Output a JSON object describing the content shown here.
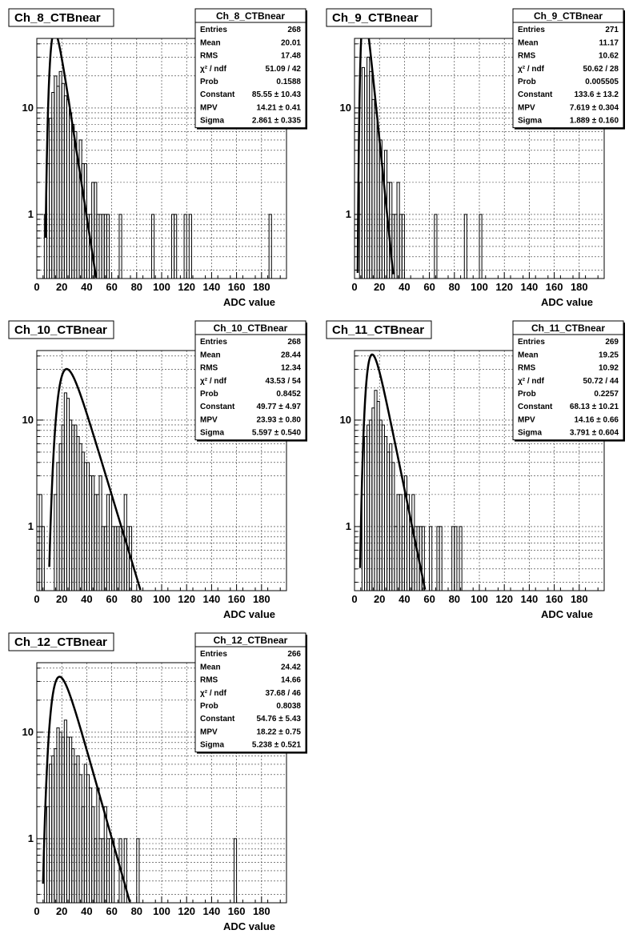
{
  "page": {
    "footer": ""
  },
  "axis_labels": {
    "x_ticks": [
      "0",
      "20",
      "40",
      "60",
      "80",
      "100",
      "120",
      "140",
      "160",
      "180"
    ],
    "y_ticks": [
      "1",
      "10"
    ]
  },
  "chart_data": [
    {
      "type": "bar",
      "title": "Ch_8_CTBnear",
      "xlabel": "ADC value",
      "ylabel": "",
      "xlim": [
        0,
        200
      ],
      "ylim_log": [
        0.25,
        45
      ],
      "log_y": true,
      "grid": true,
      "legend_position": "top-right",
      "stats": [
        {
          "label": "Entries",
          "value": "268"
        },
        {
          "label": "Mean",
          "value": "20.01"
        },
        {
          "label": "RMS",
          "value": "17.48"
        },
        {
          "label": "χ² / ndf",
          "value": "51.09 / 42"
        },
        {
          "label": "Prob",
          "value": "0.1588"
        },
        {
          "label": "Constant",
          "value": "85.55 ± 10.43"
        },
        {
          "label": "MPV",
          "value": "14.21 ± 0.41"
        },
        {
          "label": "Sigma",
          "value": "2.861 ± 0.335"
        }
      ],
      "fit": {
        "function": "landau",
        "constant": 85.55,
        "mpv": 14.21,
        "sigma": 2.861
      },
      "bins": [
        [
          6,
          1
        ],
        [
          8,
          3
        ],
        [
          10,
          8
        ],
        [
          12,
          14
        ],
        [
          14,
          20
        ],
        [
          16,
          16
        ],
        [
          18,
          22
        ],
        [
          20,
          17
        ],
        [
          22,
          13
        ],
        [
          24,
          12
        ],
        [
          26,
          9
        ],
        [
          28,
          7
        ],
        [
          30,
          6
        ],
        [
          32,
          3
        ],
        [
          34,
          5
        ],
        [
          36,
          3
        ],
        [
          38,
          3
        ],
        [
          40,
          1
        ],
        [
          42,
          1
        ],
        [
          44,
          2
        ],
        [
          46,
          2
        ],
        [
          48,
          1
        ],
        [
          50,
          1
        ],
        [
          52,
          1
        ],
        [
          54,
          1
        ],
        [
          56,
          1
        ],
        [
          66,
          1
        ],
        [
          92,
          1
        ],
        [
          108,
          1
        ],
        [
          110,
          1
        ],
        [
          118,
          1
        ],
        [
          122,
          1
        ],
        [
          186,
          1
        ]
      ]
    },
    {
      "type": "bar",
      "title": "Ch_9_CTBnear",
      "xlabel": "ADC value",
      "ylabel": "",
      "xlim": [
        0,
        200
      ],
      "ylim_log": [
        0.25,
        45
      ],
      "log_y": true,
      "grid": true,
      "legend_position": "top-right",
      "stats": [
        {
          "label": "Entries",
          "value": "271"
        },
        {
          "label": "Mean",
          "value": "11.17"
        },
        {
          "label": "RMS",
          "value": "10.62"
        },
        {
          "label": "χ² / ndf",
          "value": "50.62 / 28"
        },
        {
          "label": "Prob",
          "value": "0.005505"
        },
        {
          "label": "Constant",
          "value": "133.6 ± 13.2"
        },
        {
          "label": "MPV",
          "value": "7.619 ± 0.304"
        },
        {
          "label": "Sigma",
          "value": "1.889 ± 0.160"
        }
      ],
      "fit": {
        "function": "landau",
        "constant": 133.6,
        "mpv": 7.619,
        "sigma": 1.889
      },
      "bins": [
        [
          4,
          2
        ],
        [
          6,
          24
        ],
        [
          8,
          20
        ],
        [
          10,
          30
        ],
        [
          12,
          22
        ],
        [
          14,
          12
        ],
        [
          16,
          9
        ],
        [
          18,
          6
        ],
        [
          20,
          5
        ],
        [
          22,
          3
        ],
        [
          24,
          4
        ],
        [
          26,
          2
        ],
        [
          28,
          2
        ],
        [
          30,
          1
        ],
        [
          32,
          1
        ],
        [
          34,
          2
        ],
        [
          36,
          1
        ],
        [
          38,
          1
        ],
        [
          64,
          1
        ],
        [
          88,
          1
        ],
        [
          100,
          1
        ]
      ]
    },
    {
      "type": "bar",
      "title": "Ch_10_CTBnear",
      "xlabel": "ADC value",
      "ylabel": "",
      "xlim": [
        0,
        200
      ],
      "ylim_log": [
        0.25,
        45
      ],
      "log_y": true,
      "grid": true,
      "legend_position": "top-right",
      "stats": [
        {
          "label": "Entries",
          "value": "268"
        },
        {
          "label": "Mean",
          "value": "28.44"
        },
        {
          "label": "RMS",
          "value": "12.34"
        },
        {
          "label": "χ² / ndf",
          "value": "43.53 / 54"
        },
        {
          "label": "Prob",
          "value": "0.8452"
        },
        {
          "label": "Constant",
          "value": "49.77 ± 4.97"
        },
        {
          "label": "MPV",
          "value": "23.93 ± 0.80"
        },
        {
          "label": "Sigma",
          "value": "5.597 ± 0.540"
        }
      ],
      "fit": {
        "function": "landau",
        "constant": 49.77,
        "mpv": 23.93,
        "sigma": 5.597
      },
      "bins": [
        [
          2,
          2
        ],
        [
          4,
          1
        ],
        [
          14,
          2
        ],
        [
          16,
          4
        ],
        [
          18,
          6
        ],
        [
          20,
          9
        ],
        [
          22,
          18
        ],
        [
          24,
          16
        ],
        [
          26,
          10
        ],
        [
          28,
          9
        ],
        [
          30,
          9
        ],
        [
          32,
          7
        ],
        [
          34,
          6
        ],
        [
          36,
          5
        ],
        [
          38,
          4
        ],
        [
          40,
          4
        ],
        [
          42,
          3
        ],
        [
          44,
          3
        ],
        [
          46,
          2
        ],
        [
          48,
          2
        ],
        [
          50,
          3
        ],
        [
          52,
          1
        ],
        [
          54,
          1
        ],
        [
          56,
          2
        ],
        [
          58,
          2
        ],
        [
          60,
          1
        ],
        [
          62,
          1
        ],
        [
          64,
          1
        ],
        [
          66,
          1
        ],
        [
          68,
          1
        ],
        [
          70,
          2
        ],
        [
          72,
          1
        ],
        [
          74,
          1
        ]
      ]
    },
    {
      "type": "bar",
      "title": "Ch_11_CTBnear",
      "xlabel": "ADC value",
      "ylabel": "",
      "xlim": [
        0,
        200
      ],
      "ylim_log": [
        0.25,
        45
      ],
      "log_y": true,
      "grid": true,
      "legend_position": "top-right",
      "stats": [
        {
          "label": "Entries",
          "value": "269"
        },
        {
          "label": "Mean",
          "value": "19.25"
        },
        {
          "label": "RMS",
          "value": "10.92"
        },
        {
          "label": "χ² / ndf",
          "value": "50.72 / 44"
        },
        {
          "label": "Prob",
          "value": "0.2257"
        },
        {
          "label": "Constant",
          "value": "68.13 ± 10.21"
        },
        {
          "label": "MPV",
          "value": "14.16 ± 0.66"
        },
        {
          "label": "Sigma",
          "value": "3.791 ± 0.604"
        }
      ],
      "fit": {
        "function": "landau",
        "constant": 68.13,
        "mpv": 14.16,
        "sigma": 3.791
      },
      "bins": [
        [
          6,
          2
        ],
        [
          8,
          7
        ],
        [
          10,
          9
        ],
        [
          12,
          10
        ],
        [
          14,
          13
        ],
        [
          16,
          19
        ],
        [
          18,
          15
        ],
        [
          20,
          10
        ],
        [
          22,
          9
        ],
        [
          24,
          7
        ],
        [
          26,
          5
        ],
        [
          28,
          6
        ],
        [
          30,
          4
        ],
        [
          32,
          1
        ],
        [
          34,
          2
        ],
        [
          36,
          2
        ],
        [
          38,
          1
        ],
        [
          40,
          3
        ],
        [
          42,
          2
        ],
        [
          44,
          1
        ],
        [
          46,
          2
        ],
        [
          48,
          1
        ],
        [
          50,
          1
        ],
        [
          52,
          1
        ],
        [
          54,
          1
        ],
        [
          60,
          1
        ],
        [
          66,
          1
        ],
        [
          68,
          1
        ],
        [
          78,
          1
        ],
        [
          80,
          1
        ],
        [
          84,
          1
        ]
      ]
    },
    {
      "type": "bar",
      "title": "Ch_12_CTBnear",
      "xlabel": "ADC value",
      "ylabel": "",
      "xlim": [
        0,
        200
      ],
      "ylim_log": [
        0.25,
        45
      ],
      "log_y": true,
      "grid": true,
      "legend_position": "top-right",
      "stats": [
        {
          "label": "Entries",
          "value": "266"
        },
        {
          "label": "Mean",
          "value": "24.42"
        },
        {
          "label": "RMS",
          "value": "14.66"
        },
        {
          "label": "χ² / ndf",
          "value": "37.68 / 46"
        },
        {
          "label": "Prob",
          "value": "0.8038"
        },
        {
          "label": "Constant",
          "value": "54.76 ± 5.43"
        },
        {
          "label": "MPV",
          "value": "18.22 ± 0.75"
        },
        {
          "label": "Sigma",
          "value": "5.238 ± 0.521"
        }
      ],
      "fit": {
        "function": "landau",
        "constant": 54.76,
        "mpv": 18.22,
        "sigma": 5.238
      },
      "bins": [
        [
          6,
          1
        ],
        [
          8,
          2
        ],
        [
          10,
          5
        ],
        [
          12,
          6
        ],
        [
          14,
          7
        ],
        [
          16,
          11
        ],
        [
          18,
          10
        ],
        [
          20,
          9
        ],
        [
          22,
          13
        ],
        [
          24,
          9
        ],
        [
          26,
          9
        ],
        [
          28,
          7
        ],
        [
          30,
          5
        ],
        [
          32,
          6
        ],
        [
          34,
          4
        ],
        [
          36,
          2
        ],
        [
          38,
          5
        ],
        [
          40,
          4
        ],
        [
          42,
          3
        ],
        [
          44,
          2
        ],
        [
          46,
          1
        ],
        [
          48,
          3
        ],
        [
          50,
          1
        ],
        [
          52,
          1
        ],
        [
          54,
          2
        ],
        [
          56,
          1
        ],
        [
          58,
          1
        ],
        [
          60,
          1
        ],
        [
          66,
          1
        ],
        [
          70,
          1
        ],
        [
          80,
          1
        ],
        [
          158,
          1
        ]
      ]
    }
  ]
}
